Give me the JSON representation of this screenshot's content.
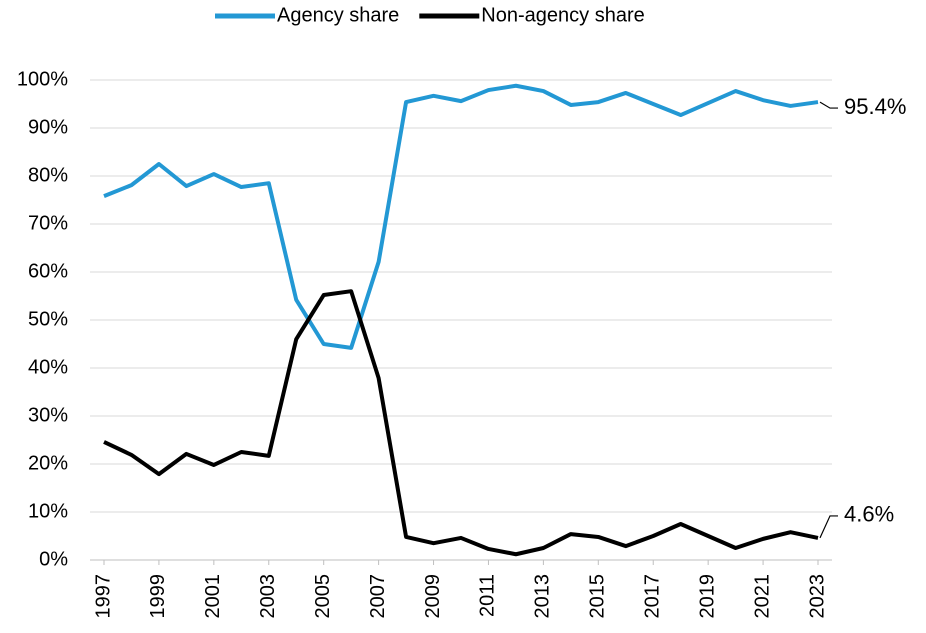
{
  "chart_data": {
    "type": "line",
    "x": [
      1997,
      1998,
      1999,
      2000,
      2001,
      2002,
      2003,
      2004,
      2005,
      2006,
      2007,
      2008,
      2009,
      2010,
      2011,
      2012,
      2013,
      2014,
      2015,
      2016,
      2017,
      2018,
      2019,
      2020,
      2021,
      2022,
      2023
    ],
    "series": [
      {
        "name": "Agency share",
        "color": "#2398d4",
        "values": [
          75.8,
          78.1,
          82.5,
          77.9,
          80.4,
          77.7,
          78.5,
          54.2,
          45.0,
          44.2,
          62.1,
          95.4,
          96.7,
          95.6,
          97.9,
          98.8,
          97.7,
          94.8,
          95.4,
          97.3,
          95.0,
          92.7,
          95.2,
          97.7,
          95.8,
          94.6,
          95.4
        ]
      },
      {
        "name": "Non-agency share",
        "color": "#000000",
        "values": [
          24.6,
          21.9,
          17.9,
          22.1,
          19.8,
          22.5,
          21.7,
          46.0,
          55.2,
          56.0,
          37.9,
          4.8,
          3.5,
          4.6,
          2.3,
          1.2,
          2.5,
          5.4,
          4.8,
          2.9,
          5.0,
          7.5,
          5.0,
          2.5,
          4.4,
          5.8,
          4.6
        ]
      }
    ],
    "annotations": [
      "95.4%",
      "4.6%"
    ],
    "xlim": [
      1997,
      2023
    ],
    "xticks": [
      1997,
      1999,
      2001,
      2003,
      2005,
      2007,
      2009,
      2011,
      2013,
      2015,
      2017,
      2019,
      2021,
      2023
    ],
    "ylim": [
      0,
      100
    ],
    "yticks": [
      {
        "value": 0,
        "label": "0%"
      },
      {
        "value": 10,
        "label": "10%"
      },
      {
        "value": 20,
        "label": "20%"
      },
      {
        "value": 30,
        "label": "30%"
      },
      {
        "value": 40,
        "label": "40%"
      },
      {
        "value": 50,
        "label": "50%"
      },
      {
        "value": 60,
        "label": "60%"
      },
      {
        "value": 70,
        "label": "70%"
      },
      {
        "value": 80,
        "label": "80%"
      },
      {
        "value": 90,
        "label": "90%"
      },
      {
        "value": 100,
        "label": "100%"
      }
    ],
    "grid": true,
    "legend": "top"
  }
}
